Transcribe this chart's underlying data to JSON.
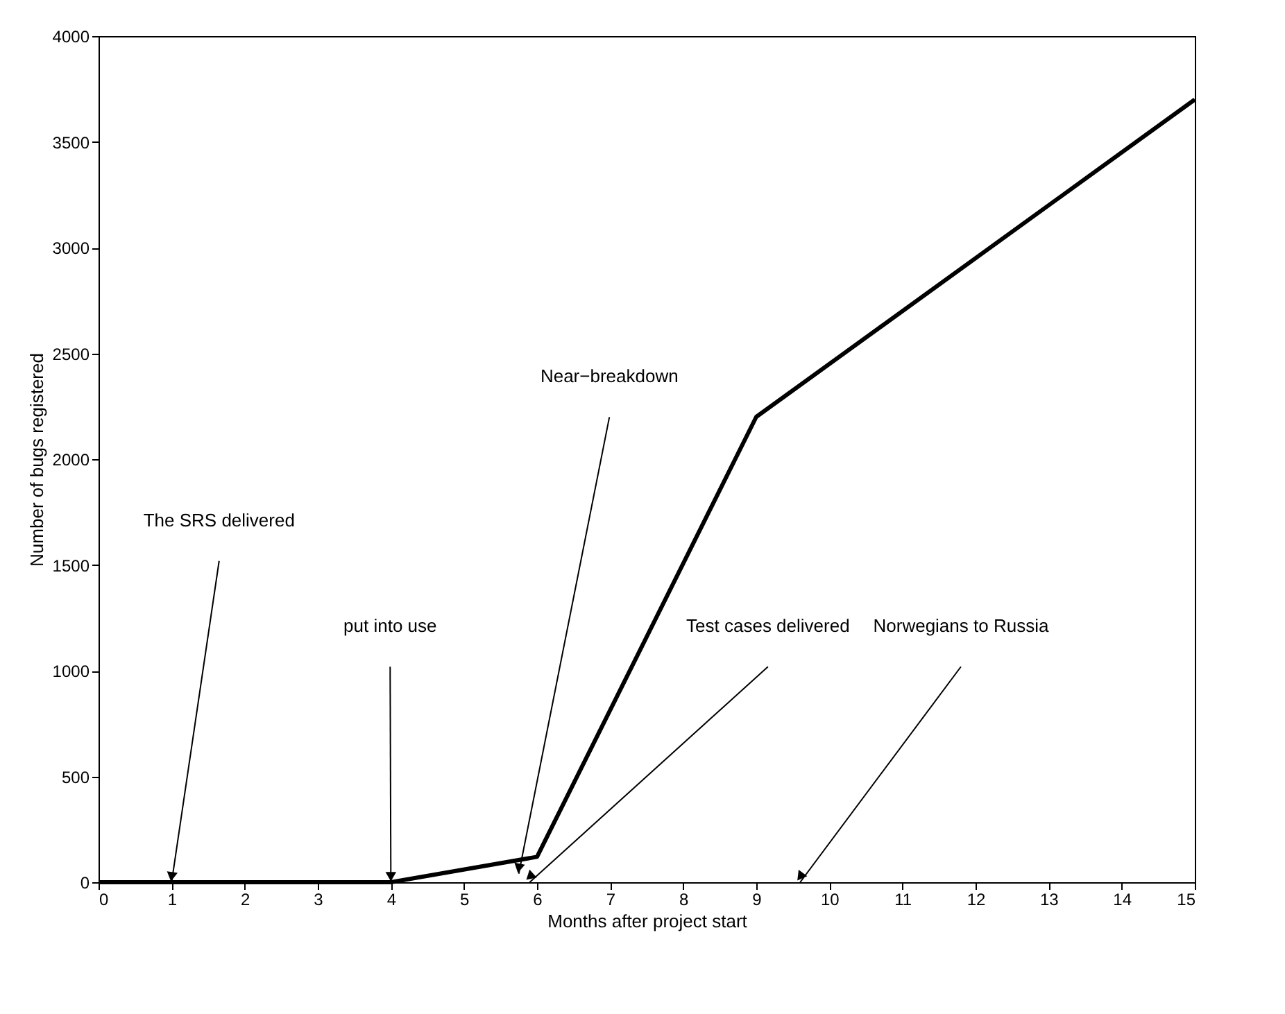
{
  "chart_data": {
    "type": "line",
    "xlabel": "Months after project start",
    "ylabel": "Number of bugs registered",
    "x": [
      0,
      4,
      6,
      9,
      15
    ],
    "series": [
      {
        "color": "#000000",
        "values": [
          0,
          0,
          120,
          2200,
          3700
        ]
      }
    ],
    "xlim": [
      0,
      15
    ],
    "xticks": [
      0,
      1,
      2,
      3,
      4,
      5,
      6,
      7,
      8,
      9,
      10,
      11,
      12,
      13,
      14,
      15
    ],
    "ylim": [
      0,
      4000
    ],
    "yticks": [
      0,
      500,
      1000,
      1500,
      2000,
      2500,
      3000,
      3500,
      4000
    ],
    "grid": false,
    "marker": "none",
    "line_style": "solid",
    "annotations": [
      "The SRS delivered",
      "put into use",
      "Near−breakdown",
      "Test cases delivered",
      "Norwegians to Russia"
    ]
  }
}
